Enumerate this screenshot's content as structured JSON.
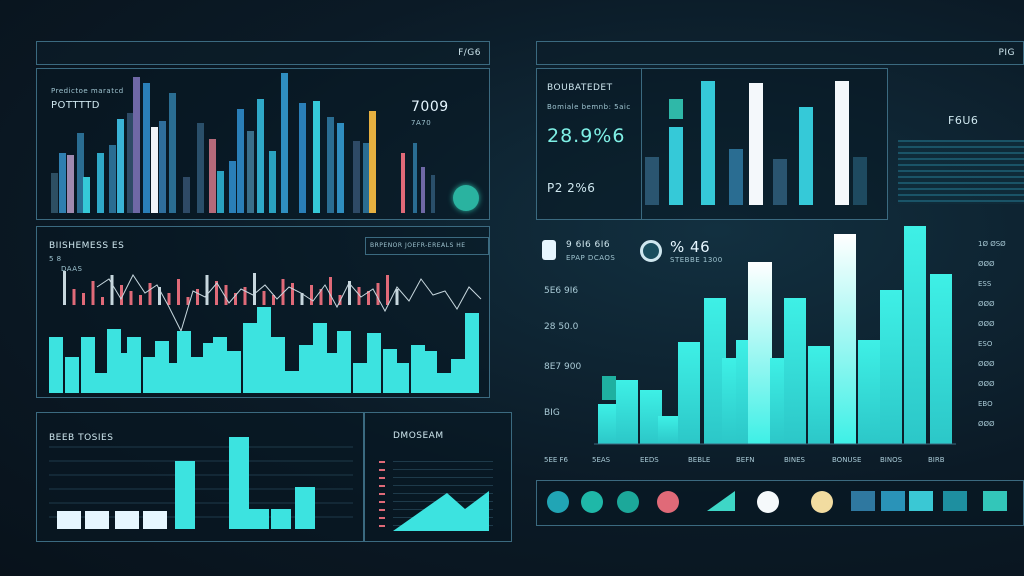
{
  "header_left": {
    "label": "F/G6"
  },
  "header_right": {
    "label": "PIG"
  },
  "panel_a": {
    "small_caption": "Predictoe maratcd",
    "title": "POTTTTD",
    "stat_value": "7009",
    "stat_sub": "7A70",
    "circle_color": "#2ab3a0"
  },
  "panel_b": {
    "title": "BIISHEMESS ES",
    "legend_text": "BRPENOR JOEFR-EREALS HE",
    "y_label": "5 8",
    "y_sub": "DAAS"
  },
  "panel_c": {
    "title": "BEEB TOSIES"
  },
  "panel_d": {
    "title": "DMOSEAM"
  },
  "panel_e": {
    "title": "BOUBATEDET",
    "caption": "Bomiale bemnb: 5aic",
    "big_value": "28.9%6",
    "sub_value": "P2 2%6"
  },
  "panel_f": {
    "label": "F6U6"
  },
  "main_chart": {
    "stat1_value": "9 6I6 6I6",
    "stat1_sub": "EPAP DCAOS",
    "stat2_value": "% 46",
    "stat2_sub": "STEBBE 1300",
    "y_ticks": [
      "5E6 9I6",
      "28 50.0",
      "8E7 900",
      "BIG"
    ],
    "x_ticks": [
      "5EE F6",
      "5EAS",
      "EEDS",
      "BEBLE",
      "BEFN",
      "BINES",
      "BONUSE",
      "BINOS",
      "BIRB"
    ],
    "right_ticks": [
      "1Ø ØSØ",
      "ØØØ",
      "ESS",
      "ØØØ",
      "ØØØ",
      "ESO",
      "ØØØ",
      "ØØØ",
      "EBO",
      "ØØØ"
    ]
  },
  "palette": {
    "circles": [
      "#21a5b5",
      "#1fb8a8",
      "#1ca89a",
      "#e06a78",
      "#f5f9fb",
      "#f2dca0"
    ],
    "triangle": "#3ed6c6",
    "squares": [
      "#2f78a0",
      "#2a93b8",
      "#3ac8d4",
      "#1e8fa0",
      "#33c6b9"
    ]
  },
  "colors": {
    "accent": "#3ce3e0",
    "border": "#3b6a80",
    "red": "#e06a78"
  }
}
